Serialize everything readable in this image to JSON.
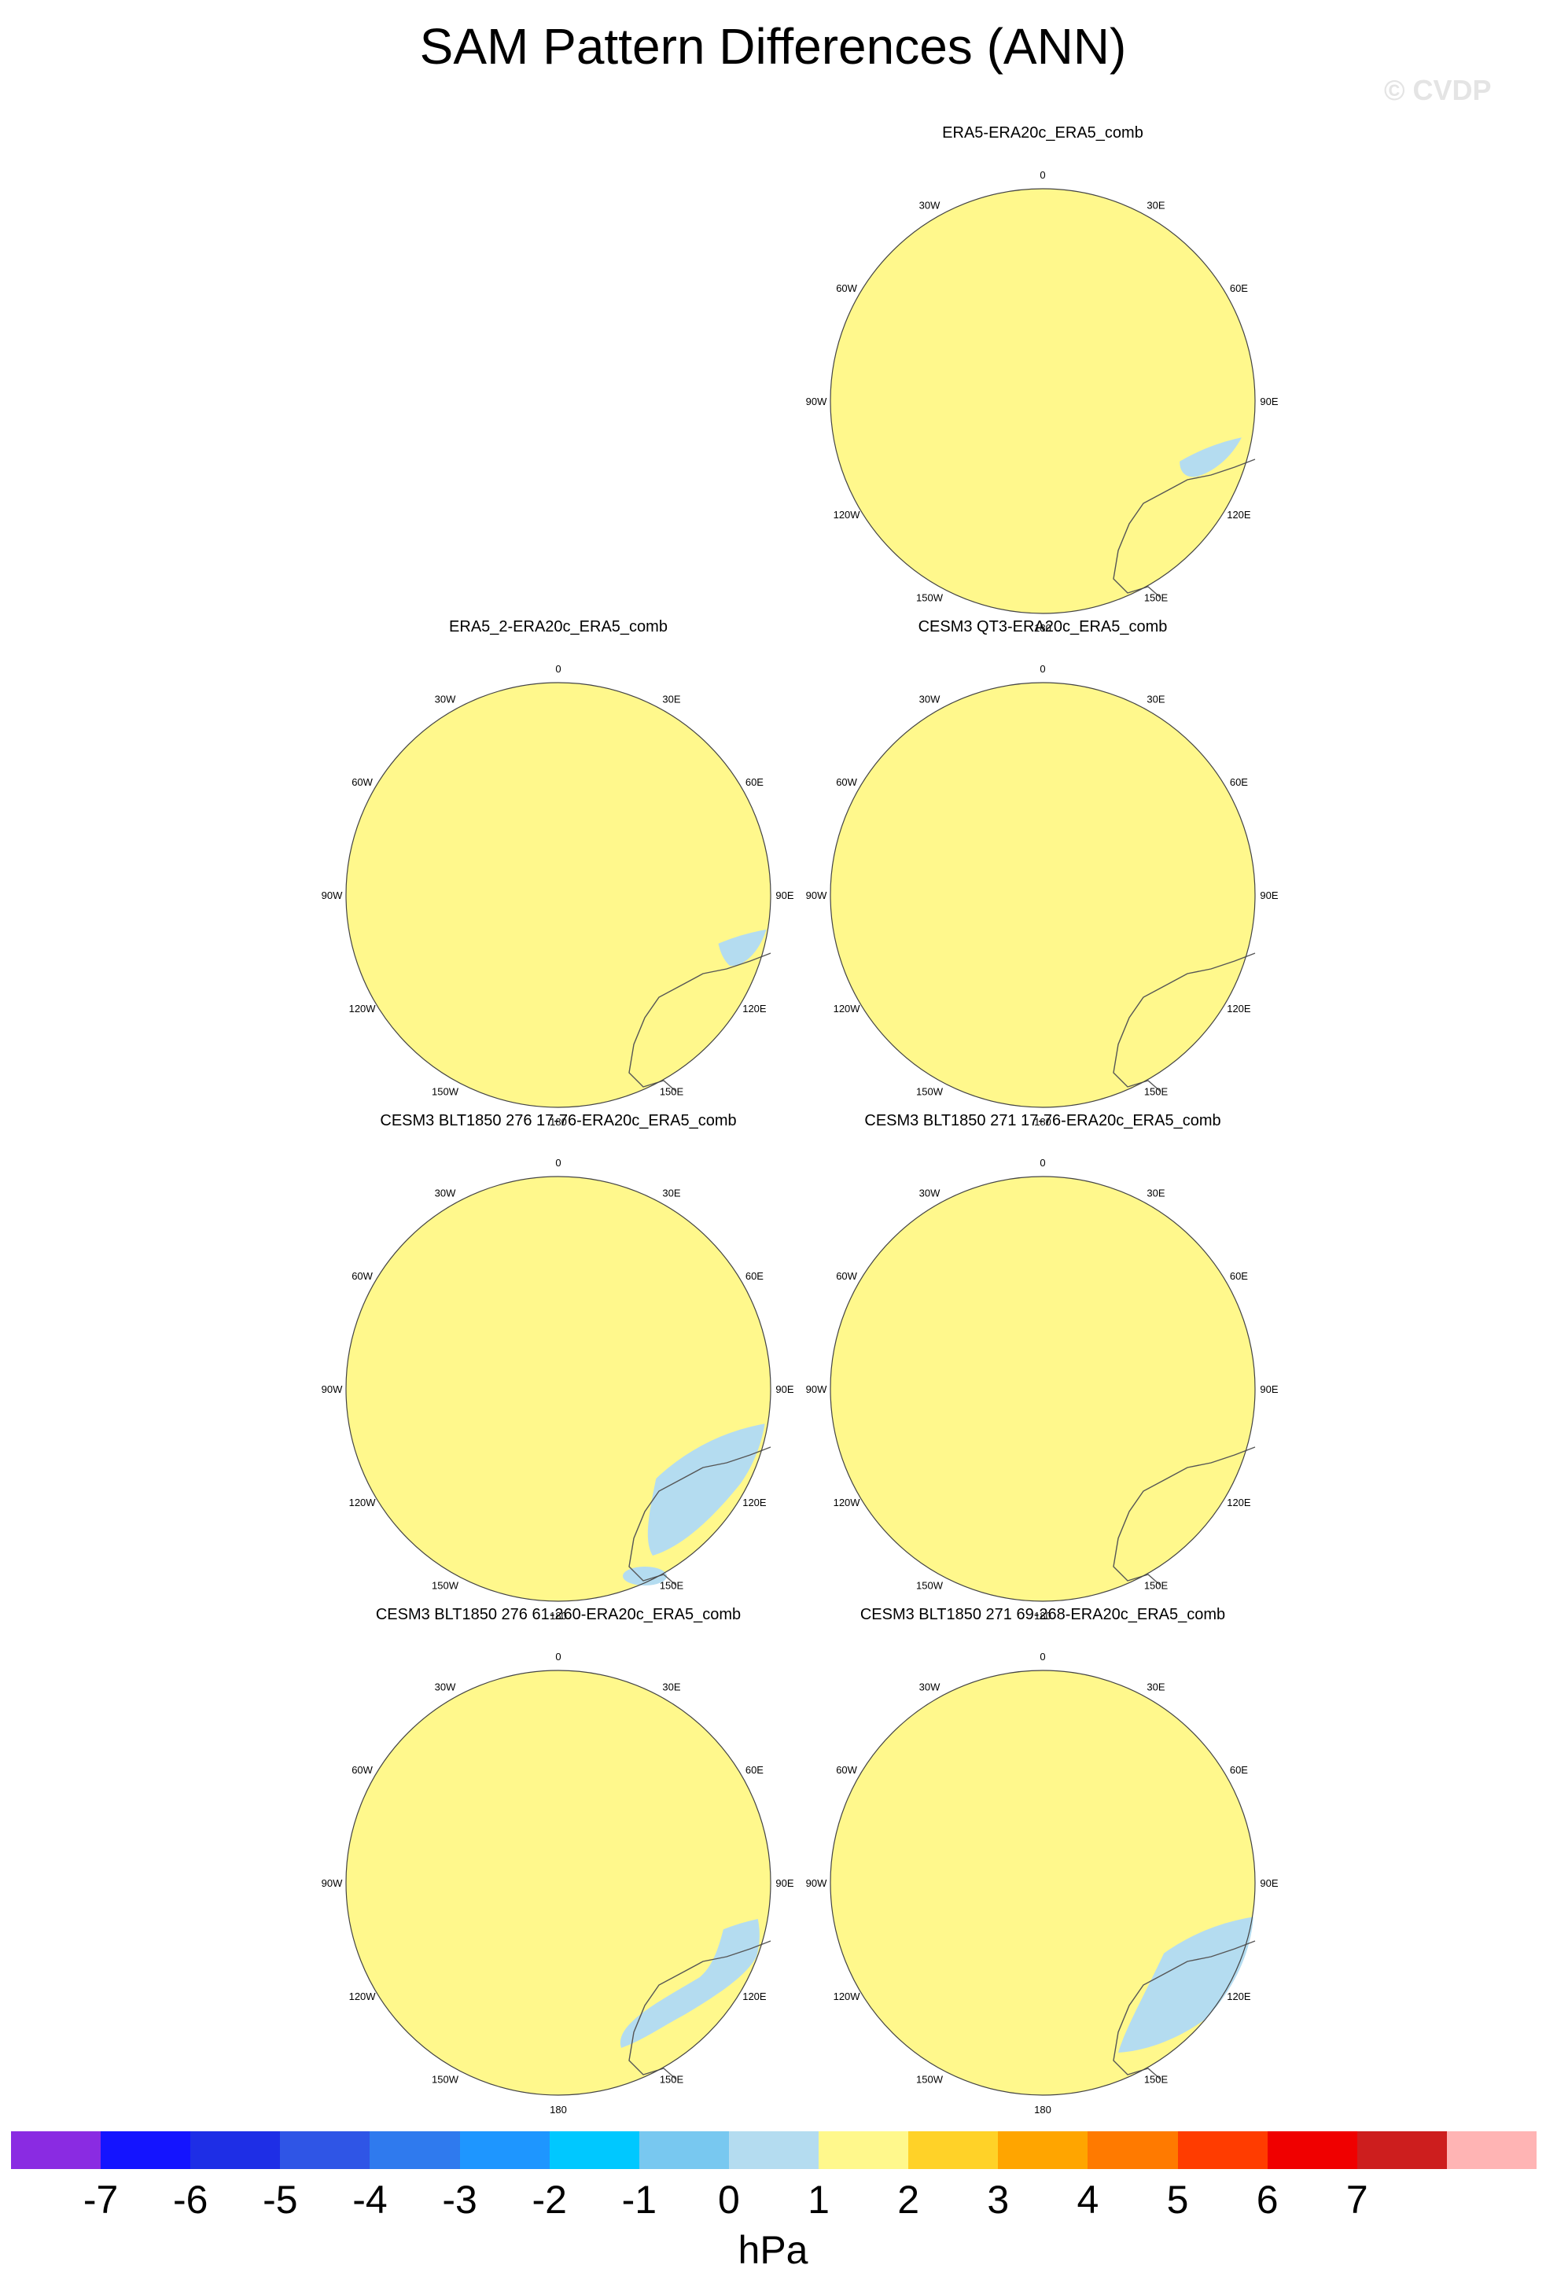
{
  "title": "SAM Pattern Differences (ANN)",
  "watermark": "© CVDP",
  "lon_labels": [
    "0",
    "30E",
    "60E",
    "90E",
    "120E",
    "150E",
    "180",
    "150W",
    "120W",
    "90W",
    "60W",
    "30W"
  ],
  "panels": [
    {
      "title": "ERA5-ERA20c_ERA5_comb"
    },
    {
      "title": "ERA5_2-ERA20c_ERA5_comb"
    },
    {
      "title": "CESM3 QT3-ERA20c_ERA5_comb"
    },
    {
      "title": "CESM3 BLT1850 276 17-76-ERA20c_ERA5_comb"
    },
    {
      "title": "CESM3 BLT1850 271 17-76-ERA20c_ERA5_comb"
    },
    {
      "title": "CESM3 BLT1850 276 61-260-ERA20c_ERA5_comb"
    },
    {
      "title": "CESM3 BLT1850 271 69-268-ERA20c_ERA5_comb"
    }
  ],
  "colorbar": {
    "labels": [
      "-7",
      "-6",
      "-5",
      "-4",
      "-3",
      "-2",
      "-1",
      "0",
      "1",
      "2",
      "3",
      "4",
      "5",
      "6",
      "7"
    ],
    "colors": [
      "#8a2be2",
      "#1414ff",
      "#1e2ee6",
      "#2f55e6",
      "#2f7aee",
      "#1e96ff",
      "#00c8ff",
      "#78c8f0",
      "#b4dcf0",
      "#fff88c",
      "#ffd228",
      "#ffa500",
      "#ff7a00",
      "#ff3c00",
      "#f00000",
      "#cd1e1e",
      "#ffb4b4"
    ],
    "unit": "hPa"
  },
  "colors": {
    "background_fill": "#fff88c",
    "light_blue": "#b4dcf0",
    "yellow_orange": "#ffd228",
    "orange": "#ffa500",
    "pale": "#fffbd8"
  }
}
